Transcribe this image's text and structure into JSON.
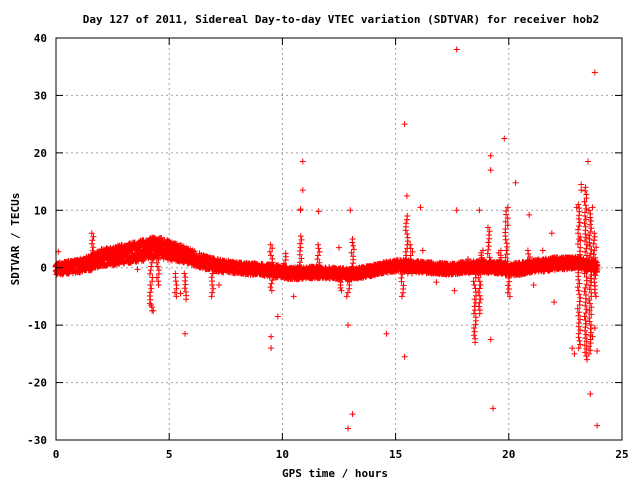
{
  "chart_data": {
    "type": "scatter",
    "title": "Day 127 of 2011, Sidereal Day-to-day VTEC variation (SDTVAR) for receiver hob2",
    "xlabel": "GPS time / hours",
    "ylabel": "SDTVAR / TECUs",
    "xlim": [
      0,
      25
    ],
    "ylim": [
      -30,
      40
    ],
    "xticks": [
      0,
      5,
      10,
      15,
      20,
      25
    ],
    "yticks": [
      -30,
      -20,
      -10,
      0,
      10,
      20,
      30,
      40
    ],
    "grid": true,
    "marker": "+",
    "color": "#ff0000",
    "band_center": [
      [
        0.0,
        -0.2
      ],
      [
        0.5,
        0.0
      ],
      [
        1.0,
        0.3
      ],
      [
        1.5,
        0.8
      ],
      [
        2.0,
        1.8
      ],
      [
        2.5,
        2.0
      ],
      [
        3.0,
        2.4
      ],
      [
        3.5,
        2.7
      ],
      [
        4.0,
        3.2
      ],
      [
        4.5,
        3.6
      ],
      [
        5.0,
        3.0
      ],
      [
        5.5,
        2.5
      ],
      [
        6.0,
        1.8
      ],
      [
        6.5,
        1.0
      ],
      [
        7.0,
        0.5
      ],
      [
        7.5,
        0.2
      ],
      [
        8.0,
        0.0
      ],
      [
        8.5,
        -0.2
      ],
      [
        9.0,
        -0.3
      ],
      [
        9.5,
        -0.5
      ],
      [
        10.0,
        -0.7
      ],
      [
        10.5,
        -1.0
      ],
      [
        11.0,
        -0.9
      ],
      [
        11.5,
        -0.8
      ],
      [
        12.0,
        -0.9
      ],
      [
        12.5,
        -1.0
      ],
      [
        13.0,
        -1.2
      ],
      [
        13.5,
        -0.9
      ],
      [
        14.0,
        -0.4
      ],
      [
        14.5,
        0.0
      ],
      [
        15.0,
        0.3
      ],
      [
        15.5,
        0.4
      ],
      [
        16.0,
        0.2
      ],
      [
        16.5,
        0.0
      ],
      [
        17.0,
        -0.2
      ],
      [
        17.5,
        -0.2
      ],
      [
        18.0,
        0.0
      ],
      [
        18.5,
        0.1
      ],
      [
        19.0,
        0.2
      ],
      [
        19.5,
        0.0
      ],
      [
        20.0,
        -0.3
      ],
      [
        20.5,
        -0.2
      ],
      [
        21.0,
        0.2
      ],
      [
        21.5,
        0.4
      ],
      [
        22.0,
        0.7
      ],
      [
        22.5,
        0.8
      ],
      [
        23.0,
        0.9
      ],
      [
        23.5,
        0.4
      ],
      [
        23.9,
        0.2
      ]
    ],
    "band_halfwidth": [
      [
        0.0,
        1.0
      ],
      [
        1.5,
        1.3
      ],
      [
        2.0,
        1.5
      ],
      [
        3.0,
        1.7
      ],
      [
        4.0,
        1.9
      ],
      [
        5.0,
        1.7
      ],
      [
        6.0,
        1.3
      ],
      [
        8.0,
        1.0
      ],
      [
        10.0,
        1.1
      ],
      [
        12.0,
        1.0
      ],
      [
        14.0,
        1.0
      ],
      [
        16.0,
        1.0
      ],
      [
        18.0,
        1.0
      ],
      [
        20.0,
        1.1
      ],
      [
        22.0,
        1.1
      ],
      [
        23.9,
        1.0
      ]
    ],
    "spikes": [
      {
        "x": 1.6,
        "ymin": 0.5,
        "ymax": 6.0
      },
      {
        "x": 4.2,
        "ymin": -7.5,
        "ymax": 1.5
      },
      {
        "x": 4.5,
        "ymin": -3.0,
        "ymax": 1.5
      },
      {
        "x": 5.3,
        "ymin": -5.0,
        "ymax": -1.0
      },
      {
        "x": 5.7,
        "ymin": -5.5,
        "ymax": -1.0
      },
      {
        "x": 6.9,
        "ymin": -5.0,
        "ymax": -1.0
      },
      {
        "x": 9.5,
        "ymin": -4.0,
        "ymax": 4.0
      },
      {
        "x": 10.1,
        "ymin": -1.0,
        "ymax": 2.5
      },
      {
        "x": 10.8,
        "ymin": -1.0,
        "ymax": 5.5
      },
      {
        "x": 11.6,
        "ymin": -1.0,
        "ymax": 4.0
      },
      {
        "x": 12.6,
        "ymin": -4.0,
        "ymax": -1.0
      },
      {
        "x": 12.9,
        "ymin": -5.0,
        "ymax": -1.0
      },
      {
        "x": 13.1,
        "ymin": -1.0,
        "ymax": 5.0
      },
      {
        "x": 15.3,
        "ymin": -5.0,
        "ymax": -0.5
      },
      {
        "x": 15.5,
        "ymin": -1.0,
        "ymax": 9.0
      },
      {
        "x": 15.7,
        "ymin": -1.0,
        "ymax": 4.0
      },
      {
        "x": 18.5,
        "ymin": -13.0,
        "ymax": -0.5
      },
      {
        "x": 18.7,
        "ymin": -8.0,
        "ymax": -0.5
      },
      {
        "x": 18.8,
        "ymin": 0.5,
        "ymax": 3.0
      },
      {
        "x": 19.1,
        "ymin": 0.5,
        "ymax": 7.0
      },
      {
        "x": 19.6,
        "ymin": 0.5,
        "ymax": 3.0
      },
      {
        "x": 19.9,
        "ymin": 0.5,
        "ymax": 10.5
      },
      {
        "x": 20.0,
        "ymin": -5.0,
        "ymax": -0.5
      },
      {
        "x": 20.9,
        "ymin": -0.5,
        "ymax": 3.0
      },
      {
        "x": 23.1,
        "ymin": -14.0,
        "ymax": 11.0
      },
      {
        "x": 23.4,
        "ymin": -16.0,
        "ymax": 14.0
      },
      {
        "x": 23.6,
        "ymin": -15.0,
        "ymax": 10.0
      },
      {
        "x": 23.8,
        "ymin": -5.0,
        "ymax": 6.0
      }
    ],
    "outliers": [
      [
        0.1,
        2.8
      ],
      [
        1.5,
        -0.5
      ],
      [
        3.6,
        -0.3
      ],
      [
        4.2,
        -6.5
      ],
      [
        4.3,
        -7.5
      ],
      [
        5.5,
        -4.5
      ],
      [
        5.7,
        -11.5
      ],
      [
        7.2,
        -3.0
      ],
      [
        9.5,
        -12.0
      ],
      [
        9.5,
        -14.0
      ],
      [
        9.8,
        -8.5
      ],
      [
        10.5,
        -5.0
      ],
      [
        10.8,
        10.0
      ],
      [
        10.9,
        13.5
      ],
      [
        10.9,
        18.5
      ],
      [
        10.8,
        10.2
      ],
      [
        11.6,
        9.8
      ],
      [
        12.5,
        3.5
      ],
      [
        12.9,
        -10.0
      ],
      [
        12.9,
        -28.0
      ],
      [
        13.0,
        10.0
      ],
      [
        13.1,
        -25.5
      ],
      [
        14.6,
        -11.5
      ],
      [
        15.4,
        25.0
      ],
      [
        15.4,
        -15.5
      ],
      [
        15.5,
        12.5
      ],
      [
        16.1,
        10.5
      ],
      [
        16.2,
        3.0
      ],
      [
        16.8,
        -2.5
      ],
      [
        17.6,
        -4.0
      ],
      [
        17.7,
        10.0
      ],
      [
        17.7,
        38.0
      ],
      [
        18.2,
        1.5
      ],
      [
        18.7,
        10.0
      ],
      [
        19.2,
        17.0
      ],
      [
        19.2,
        19.5
      ],
      [
        19.2,
        -12.5
      ],
      [
        19.3,
        -24.5
      ],
      [
        19.7,
        0.0
      ],
      [
        19.8,
        22.5
      ],
      [
        20.3,
        14.8
      ],
      [
        20.9,
        9.2
      ],
      [
        21.1,
        -3.0
      ],
      [
        21.5,
        3.0
      ],
      [
        21.9,
        6.0
      ],
      [
        22.0,
        -6.0
      ],
      [
        22.8,
        -14.0
      ],
      [
        22.9,
        -15.0
      ],
      [
        23.0,
        10.5
      ],
      [
        23.1,
        5.0
      ],
      [
        23.2,
        13.5
      ],
      [
        23.2,
        14.5
      ],
      [
        23.5,
        18.5
      ],
      [
        23.6,
        -22.0
      ],
      [
        23.7,
        10.5
      ],
      [
        23.7,
        -12.0
      ],
      [
        23.8,
        34.0
      ],
      [
        23.9,
        -27.5
      ],
      [
        23.9,
        -14.5
      ],
      [
        23.8,
        -10.5
      ]
    ]
  }
}
